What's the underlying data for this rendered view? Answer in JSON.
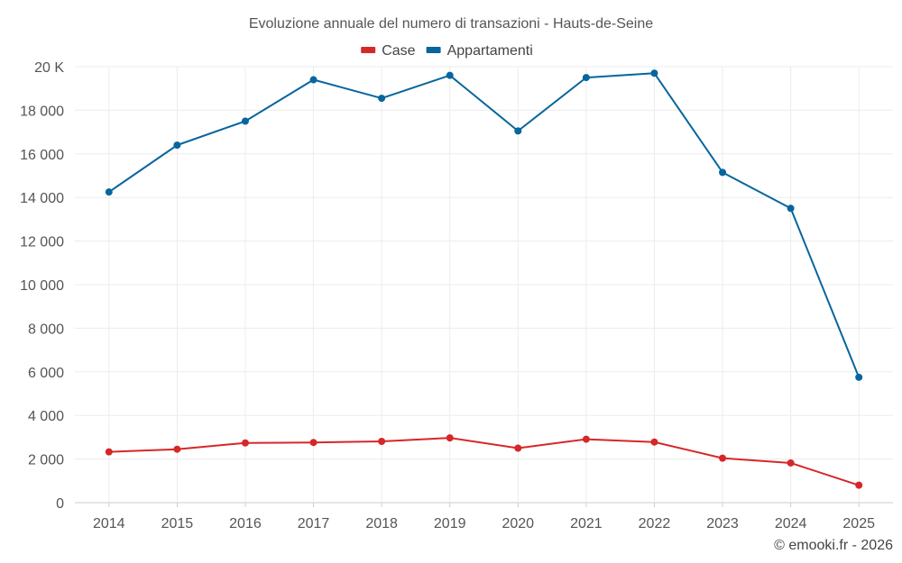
{
  "chart_data": {
    "type": "line",
    "title": "Evoluzione annuale del numero di transazioni - Hauts-de-Seine",
    "xlabel": "",
    "ylabel": "",
    "categories": [
      "2014",
      "2015",
      "2016",
      "2017",
      "2018",
      "2019",
      "2020",
      "2021",
      "2022",
      "2023",
      "2024",
      "2025"
    ],
    "series": [
      {
        "name": "Case",
        "color": "#d62728",
        "values": [
          2330,
          2450,
          2740,
          2760,
          2810,
          2970,
          2500,
          2910,
          2780,
          2040,
          1820,
          800
        ]
      },
      {
        "name": "Appartamenti",
        "color": "#07659e",
        "values": [
          14250,
          16400,
          17500,
          19400,
          18550,
          19600,
          17050,
          19500,
          19700,
          15150,
          13500,
          5750
        ]
      }
    ],
    "ylim": [
      0,
      20000
    ],
    "yticks": [
      0,
      2000,
      4000,
      6000,
      8000,
      10000,
      12000,
      14000,
      16000,
      18000,
      20000
    ],
    "ytick_labels": [
      "0",
      "2 000",
      "4 000",
      "6 000",
      "8 000",
      "10 000",
      "12 000",
      "14 000",
      "16 000",
      "18 000",
      "20 K"
    ],
    "grid": true,
    "legend": "top-center"
  },
  "credit": "© emooki.fr - 2026"
}
